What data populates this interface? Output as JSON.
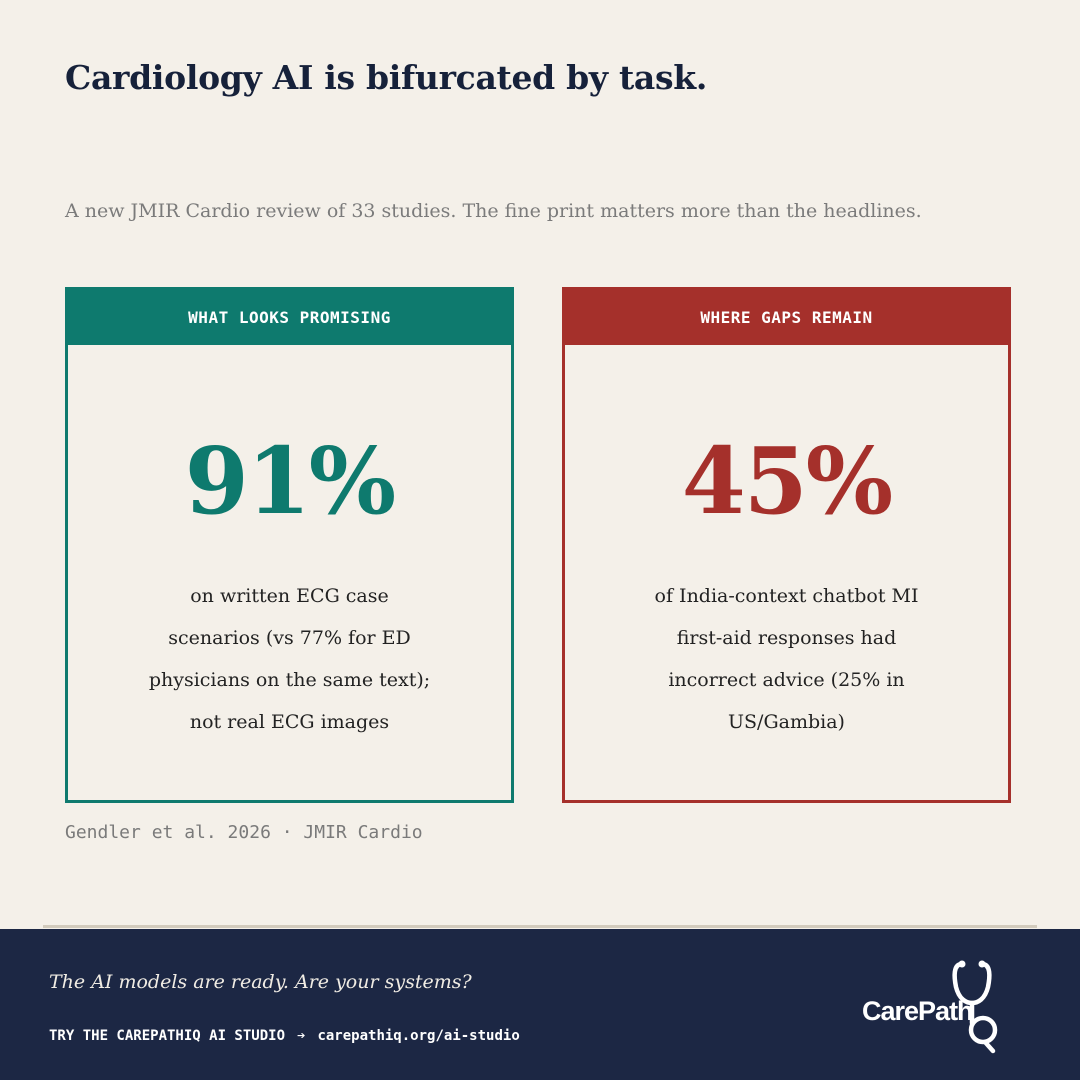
{
  "title": "Cardiology AI is bifurcated by task.",
  "subtitle": "A new JMIR Cardio review of 33 studies. The fine print matters more than the headlines.",
  "cards": [
    {
      "header": "WHAT LOOKS PROMISING",
      "stat": "91%",
      "description": "on written ECG case scenarios (vs 77% for ED physicians on the same text); not real ECG images",
      "color": "#0e7a6e"
    },
    {
      "header": "WHERE GAPS REMAIN",
      "stat": "45%",
      "description": "of India-context chatbot MI first-aid responses had incorrect advice (25% in US/Gambia)",
      "color": "#a5302b"
    }
  ],
  "citation": "Gendler et al. 2026 · JMIR Cardio",
  "footer": {
    "tagline": "The AI models are ready. Are your systems?",
    "cta_label": "TRY THE CAREPATHIQ AI STUDIO",
    "cta_arrow": "➔",
    "cta_url": "carepathiq.org/ai-studio",
    "brand": "CarePath",
    "brand_icon": "stethoscope-icon",
    "background": "#1c2744"
  }
}
